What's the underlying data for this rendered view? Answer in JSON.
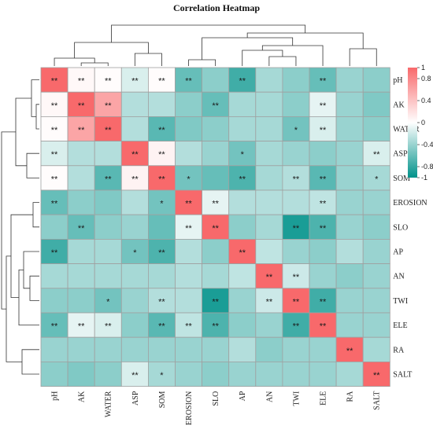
{
  "chart_data": {
    "type": "heatmap",
    "title": "Correlation Heatmap",
    "rows": [
      "pH",
      "AK",
      "WATER",
      "ASP",
      "SOM",
      "EROSION",
      "SLO",
      "AP",
      "AN",
      "TWI",
      "ELE",
      "RA",
      "SALT"
    ],
    "cols": [
      "pH",
      "AK",
      "WATER",
      "ASP",
      "SOM",
      "EROSION",
      "SLO",
      "AP",
      "AN",
      "TWI",
      "ELE",
      "RA",
      "SALT"
    ],
    "values": [
      [
        1.0,
        0.05,
        0.02,
        -0.15,
        0.02,
        -0.6,
        -0.45,
        -0.75,
        -0.35,
        -0.45,
        -0.6,
        -0.4,
        -0.45
      ],
      [
        0.05,
        1.0,
        0.6,
        -0.3,
        -0.3,
        -0.45,
        -0.6,
        -0.35,
        -0.35,
        -0.45,
        -0.1,
        -0.4,
        -0.5
      ],
      [
        0.02,
        0.6,
        1.0,
        -0.3,
        -0.65,
        -0.5,
        -0.45,
        -0.35,
        -0.35,
        -0.55,
        -0.15,
        -0.4,
        -0.45
      ],
      [
        -0.15,
        -0.3,
        -0.3,
        1.0,
        0.08,
        -0.3,
        -0.4,
        -0.55,
        -0.35,
        -0.4,
        -0.45,
        -0.4,
        -0.15
      ],
      [
        0.02,
        -0.3,
        -0.65,
        0.08,
        1.0,
        -0.55,
        -0.6,
        -0.7,
        -0.35,
        -0.3,
        -0.65,
        -0.4,
        -0.35
      ],
      [
        -0.6,
        -0.45,
        -0.5,
        -0.3,
        -0.55,
        1.0,
        -0.1,
        -0.3,
        -0.3,
        -0.3,
        -0.25,
        -0.4,
        -0.4
      ],
      [
        -0.45,
        -0.6,
        -0.45,
        -0.4,
        -0.6,
        -0.1,
        1.0,
        -0.45,
        -0.35,
        -0.9,
        -0.7,
        -0.4,
        -0.45
      ],
      [
        -0.75,
        -0.35,
        -0.35,
        -0.55,
        -0.7,
        -0.3,
        -0.45,
        1.0,
        -0.25,
        -0.4,
        -0.45,
        -0.3,
        -0.4
      ],
      [
        -0.35,
        -0.35,
        -0.35,
        -0.35,
        -0.35,
        -0.3,
        -0.35,
        -0.25,
        1.0,
        -0.2,
        -0.4,
        -0.45,
        -0.4
      ],
      [
        -0.45,
        -0.45,
        -0.55,
        -0.4,
        -0.3,
        -0.3,
        -0.9,
        -0.4,
        -0.2,
        1.0,
        -0.75,
        -0.4,
        -0.4
      ],
      [
        -0.6,
        -0.1,
        -0.15,
        -0.45,
        -0.65,
        -0.25,
        -0.7,
        -0.45,
        -0.4,
        -0.75,
        1.0,
        -0.4,
        -0.4
      ],
      [
        -0.4,
        -0.4,
        -0.4,
        -0.4,
        -0.4,
        -0.4,
        -0.4,
        -0.3,
        -0.45,
        -0.4,
        -0.4,
        1.0,
        -0.35
      ],
      [
        -0.45,
        -0.5,
        -0.45,
        -0.15,
        -0.35,
        -0.4,
        -0.45,
        -0.4,
        -0.4,
        -0.4,
        -0.4,
        -0.35,
        1.0
      ]
    ],
    "significance": [
      [
        "**",
        "**",
        "**",
        "**",
        "**",
        "**",
        "",
        "**",
        "",
        "",
        "**",
        "",
        ""
      ],
      [
        "**",
        "**",
        "**",
        "",
        "",
        "",
        "**",
        "",
        "",
        "",
        "**",
        "",
        ""
      ],
      [
        "**",
        "**",
        "**",
        "",
        "**",
        "",
        "",
        "",
        "",
        "*",
        "**",
        "",
        ""
      ],
      [
        "**",
        "",
        "",
        "**",
        "**",
        "",
        "",
        "*",
        "",
        "",
        "",
        "",
        "**"
      ],
      [
        "**",
        "",
        "**",
        "**",
        "**",
        "*",
        "",
        "**",
        "",
        "**",
        "**",
        "",
        "*"
      ],
      [
        "**",
        "",
        "",
        "",
        "*",
        "**",
        "**",
        "",
        "",
        "",
        "**",
        "",
        ""
      ],
      [
        "",
        "**",
        "",
        "",
        "",
        "**",
        "**",
        "",
        "",
        "**",
        "**",
        "",
        ""
      ],
      [
        "**",
        "",
        "",
        "*",
        "**",
        "",
        "",
        "**",
        "",
        "",
        "",
        "",
        ""
      ],
      [
        "",
        "",
        "",
        "",
        "",
        "",
        "",
        "",
        "**",
        "**",
        "",
        "",
        ""
      ],
      [
        "",
        "",
        "*",
        "",
        "**",
        "",
        "**",
        "",
        "**",
        "**",
        "**",
        "",
        ""
      ],
      [
        "**",
        "**",
        "**",
        "",
        "**",
        "**",
        "**",
        "",
        "",
        "**",
        "**",
        "",
        ""
      ],
      [
        "",
        "",
        "",
        "",
        "",
        "",
        "",
        "",
        "",
        "",
        "",
        "**",
        ""
      ],
      [
        "",
        "",
        "",
        "**",
        "*",
        "",
        "",
        "",
        "",
        "",
        "",
        "",
        "**"
      ]
    ],
    "scale": {
      "min": -1,
      "max": 1,
      "low_color": "#00928a",
      "mid_color": "#ffffff",
      "high_color": "#f8696b"
    },
    "legend_ticks": [
      "1",
      "0.8",
      "0.4",
      "0",
      "-0.4",
      "-0.8",
      "-1"
    ],
    "legend_tick_values": [
      1,
      0.8,
      0.4,
      0,
      -0.4,
      -0.8,
      -1
    ],
    "legend_placement": "right"
  }
}
